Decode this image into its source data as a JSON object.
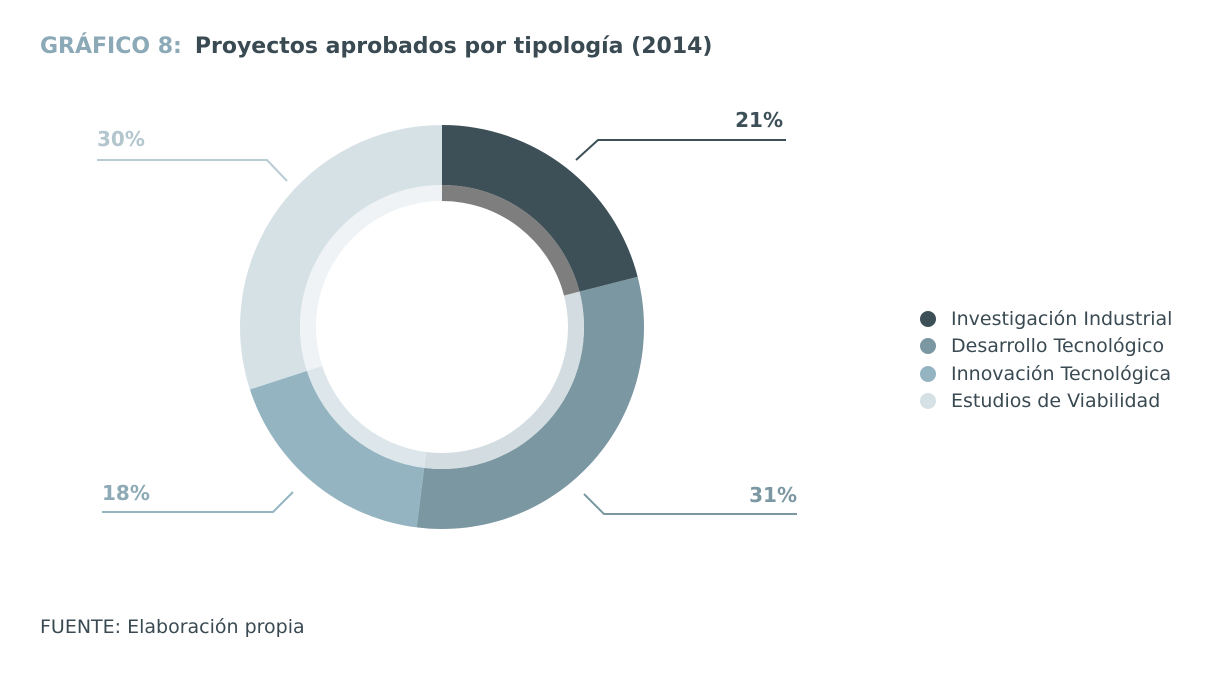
{
  "title": {
    "prefix": "GRÁFICO 8:",
    "text": "Proyectos aprobados por tipología (2014)"
  },
  "source": "FUENTE: Elaboración propia",
  "chart_data": {
    "type": "pie",
    "variant": "donut",
    "start": "top (12 o'clock)",
    "direction": "clockwise",
    "legend_position": "right",
    "slices": [
      {
        "label": "Investigación Industrial",
        "value": 21,
        "value_label": "21%",
        "color": "#3d4f57",
        "inner_color": "#7e7e7e"
      },
      {
        "label": "Desarrollo Tecnológico",
        "value": 31,
        "value_label": "31%",
        "color": "#7b97a2",
        "inner_color": "#d3dde1"
      },
      {
        "label": "Innovación Tecnológica",
        "value": 18,
        "value_label": "18%",
        "color": "#93b4c0",
        "inner_color": "#dde6ea"
      },
      {
        "label": "Estudios de Viabilidad",
        "value": 30,
        "value_label": "30%",
        "color": "#d6e1e6",
        "inner_color": "#eff3f5"
      }
    ]
  }
}
